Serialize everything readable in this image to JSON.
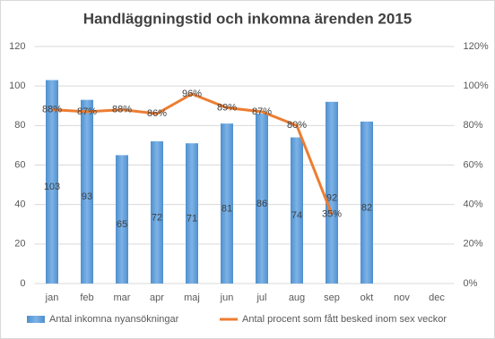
{
  "chart_data": {
    "type": "bar-line",
    "title": "Handläggningstid  och inkomna ärenden 2015",
    "categories": [
      "jan",
      "feb",
      "mar",
      "apr",
      "maj",
      "jun",
      "jul",
      "aug",
      "sep",
      "okt",
      "nov",
      "dec"
    ],
    "series": [
      {
        "name": "Antal inkomna nyansökningar",
        "type": "bar",
        "color": "#5b9bd5",
        "values": [
          103,
          93,
          65,
          72,
          71,
          81,
          86,
          74,
          92,
          82,
          null,
          null
        ]
      },
      {
        "name": "Antal procent som fått besked inom sex veckor",
        "type": "line",
        "axis": "y2",
        "color": "#ed7d31",
        "values": [
          88,
          87,
          88,
          86,
          96,
          89,
          87,
          80,
          35,
          null,
          null,
          null
        ],
        "value_labels": [
          "88%",
          "87%",
          "88%",
          "86%",
          "96%",
          "89%",
          "87%",
          "80%",
          "35%",
          null,
          null,
          null
        ]
      }
    ],
    "ylim": [
      0,
      120
    ],
    "yticks": [
      0,
      20,
      40,
      60,
      80,
      100,
      120
    ],
    "y2lim": [
      0,
      120
    ],
    "y2ticks": [
      {
        "value": 0,
        "label": "0%"
      },
      {
        "value": 20,
        "label": "20%"
      },
      {
        "value": 40,
        "label": "40%"
      },
      {
        "value": 60,
        "label": "60%"
      },
      {
        "value": 80,
        "label": "80%"
      },
      {
        "value": 100,
        "label": "100%"
      },
      {
        "value": 120,
        "label": "120%"
      }
    ],
    "grid": true,
    "legend": "bottom"
  }
}
